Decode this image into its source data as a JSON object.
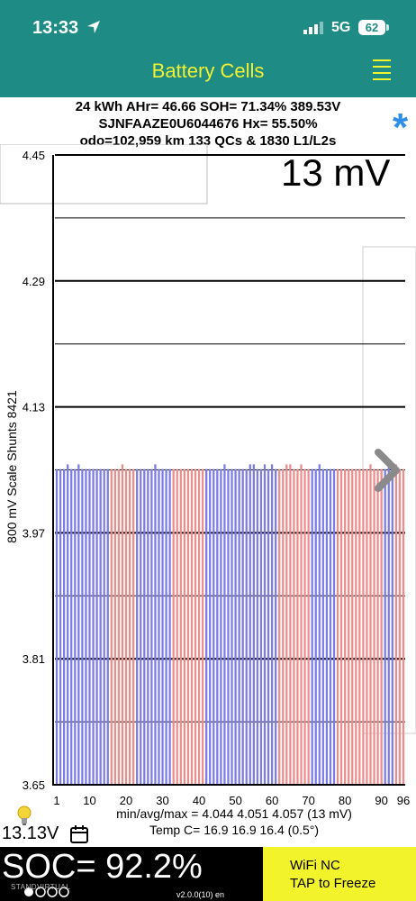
{
  "status_bar": {
    "time": "13:33",
    "network": "5G",
    "battery": "62",
    "icons": [
      "location-arrow-icon",
      "signal-bars-icon"
    ]
  },
  "header": {
    "title": "Battery Cells",
    "menu_icon": "menu-icon"
  },
  "info": {
    "line1": "24 kWh  AHr= 46.66  SOH= 71.34%   389.53V",
    "line2": "SJNFAAZE0U6044676   Hx= 55.50%",
    "line3": "odo=102,959 km 133 QCs & 1830 L1/L2s",
    "star_icon": "star-icon"
  },
  "chart_data": {
    "type": "bar",
    "mv_display": "13 mV",
    "ylabel": "800 mV Scale   Shunts 8421",
    "ylim": [
      3.65,
      4.45
    ],
    "yticks": [
      "4.45",
      "4.29",
      "4.13",
      "3.97",
      "3.81",
      "3.65"
    ],
    "xticks": [
      1,
      10,
      20,
      30,
      40,
      50,
      60,
      70,
      80,
      90,
      96
    ],
    "cell_count": 96,
    "cell_voltage_min": 4.044,
    "cell_voltage_max": 4.057,
    "cell_voltage_typical": 4.051,
    "colors": {
      "even_cells": "#7b7bea",
      "odd_cells": "#ee8c8c",
      "accent_blue": "#2f8fe8"
    },
    "red_ranges": [
      [
        16,
        22
      ],
      [
        33,
        41
      ],
      [
        62,
        70
      ],
      [
        78,
        90
      ],
      [
        94,
        96
      ]
    ],
    "high_cells": [
      4,
      7,
      19,
      28,
      47,
      54,
      55,
      58,
      60,
      64,
      65,
      68,
      73,
      87,
      92,
      94
    ]
  },
  "stats": {
    "minavgmax": "min/avg/max = 4.044  4.051  4.057  (13 mV)",
    "temp": "Temp C= 16.9   16.9   16.4   (0.5°)"
  },
  "footer": {
    "voltage": "13.13V",
    "soc": "SOC= 92.2%",
    "wifi": "WiFi NC",
    "freeze": "TAP to Freeze",
    "version": "v2.0.0(10) en",
    "watermark": "STANDVIRTUAL",
    "icons": [
      "lightbulb-icon",
      "calendar-icon"
    ]
  }
}
